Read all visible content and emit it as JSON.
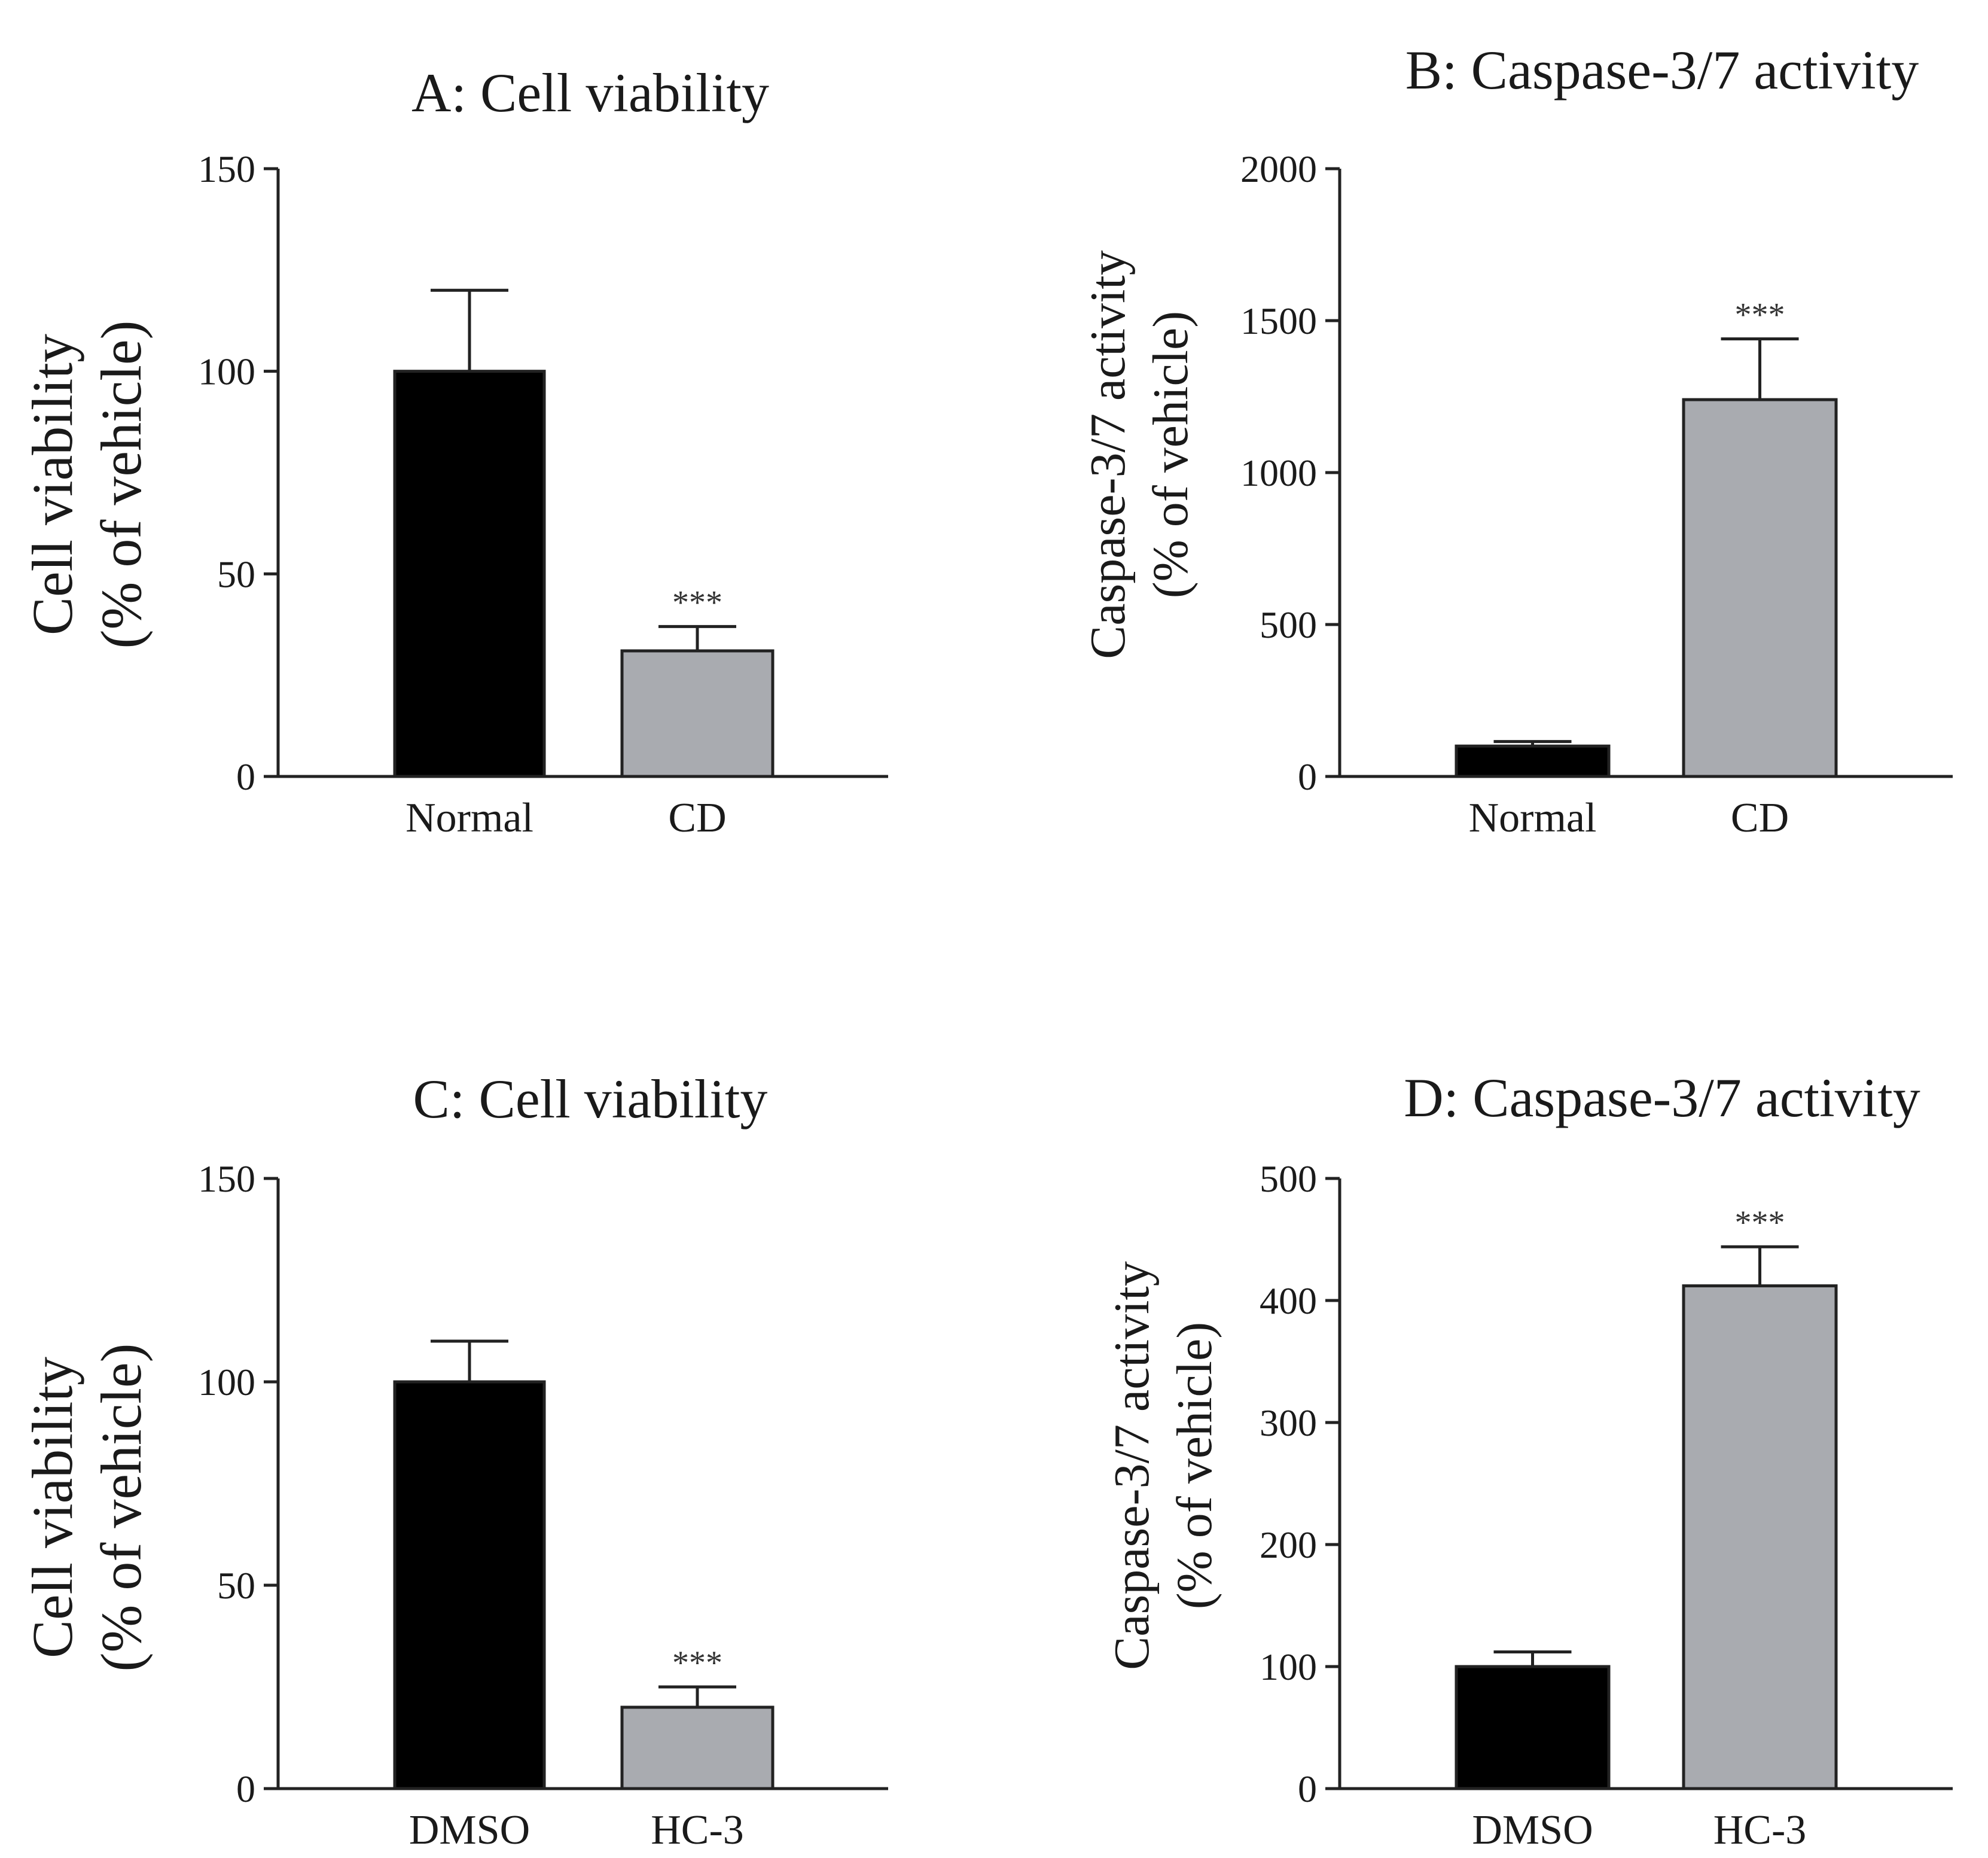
{
  "chart_data": [
    {
      "id": "A",
      "type": "bar",
      "title": "A: Cell viability",
      "ylabel_line1": "Cell viability",
      "ylabel_line2": "(% of vehicle)",
      "categories": [
        "Normal",
        "CD"
      ],
      "values": [
        100,
        31
      ],
      "errors": [
        20,
        6
      ],
      "colors": [
        "#000000",
        "#a9abb0"
      ],
      "significance": [
        "",
        "***"
      ],
      "ylim": [
        0,
        150
      ],
      "yticks": [
        0,
        50,
        100,
        150
      ],
      "ytick_labels": [
        "0",
        "50",
        "100",
        "150"
      ]
    },
    {
      "id": "B",
      "type": "bar",
      "title": "B: Caspase-3/7 activity",
      "ylabel_line1": "Caspase-3/7 activity",
      "ylabel_line2": "(% of vehicle)",
      "categories": [
        "Normal",
        "CD"
      ],
      "values": [
        100,
        1240
      ],
      "errors": [
        15,
        200
      ],
      "colors": [
        "#000000",
        "#a9abb0"
      ],
      "significance": [
        "",
        "***"
      ],
      "ylim": [
        0,
        2000
      ],
      "yticks": [
        0,
        500,
        1000,
        1500,
        2000
      ],
      "ytick_labels": [
        "0",
        "500",
        "1000",
        "1500",
        "2000"
      ]
    },
    {
      "id": "C",
      "type": "bar",
      "title": "C: Cell viability",
      "ylabel_line1": "Cell viability",
      "ylabel_line2": "(% of vehicle)",
      "categories": [
        "DMSO",
        "HC-3"
      ],
      "values": [
        100,
        20
      ],
      "errors": [
        10,
        5
      ],
      "colors": [
        "#000000",
        "#a9abb0"
      ],
      "significance": [
        "",
        "***"
      ],
      "ylim": [
        0,
        150
      ],
      "yticks": [
        0,
        50,
        100,
        150
      ],
      "ytick_labels": [
        "0",
        "50",
        "100",
        "150"
      ]
    },
    {
      "id": "D",
      "type": "bar",
      "title": "D: Caspase-3/7 activity",
      "ylabel_line1": "Caspase-3/7 activity",
      "ylabel_line2": "(% of vehicle)",
      "categories": [
        "DMSO",
        "HC-3"
      ],
      "values": [
        100,
        412
      ],
      "errors": [
        12,
        32
      ],
      "colors": [
        "#000000",
        "#a9abb0"
      ],
      "significance": [
        "",
        "***"
      ],
      "ylim": [
        0,
        500
      ],
      "yticks": [
        0,
        100,
        200,
        300,
        400,
        500
      ],
      "ytick_labels": [
        "0",
        "100",
        "200",
        "300",
        "400",
        "500"
      ]
    }
  ]
}
